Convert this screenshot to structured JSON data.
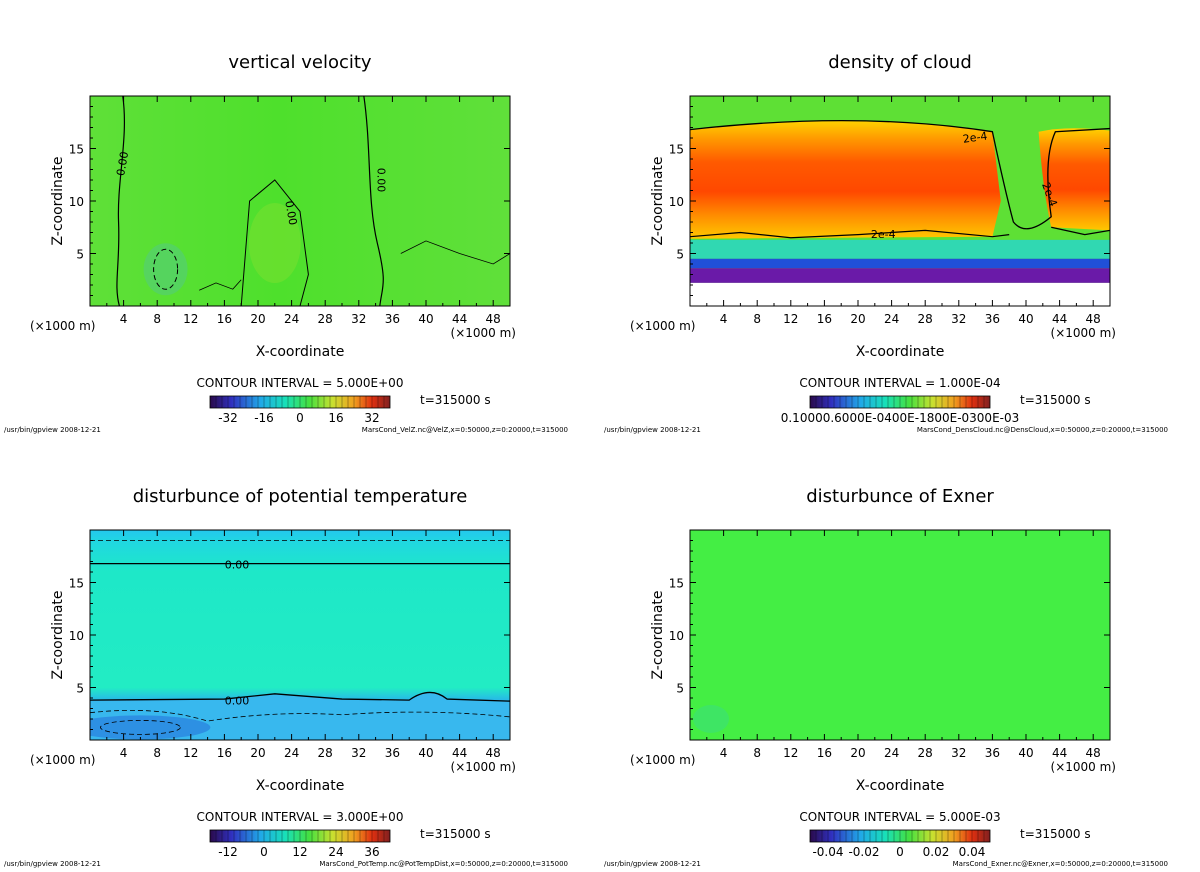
{
  "chart_data": [
    {
      "type": "heatmap",
      "title": "vertical velocity",
      "xlabel": "X-coordinate",
      "ylabel": "Z-coordinate",
      "x_unit_left": "(×1000 m)",
      "x_unit_right": "(×1000 m)",
      "xlim": [
        0,
        50
      ],
      "ylim": [
        0,
        20
      ],
      "xticks": [
        4,
        8,
        12,
        16,
        20,
        24,
        28,
        32,
        36,
        40,
        44,
        48
      ],
      "yticks": [
        5,
        10,
        15
      ],
      "contour_interval": "CONTOUR INTERVAL = 5.000E+00",
      "time_label": "t=315000 s",
      "colorbar_ticks": [
        "-32",
        "-16",
        "0",
        "16",
        "32"
      ],
      "contour_labels": [
        "0.00",
        "0.00",
        "0.00"
      ],
      "footer_left": "/usr/bin/gpview  2008-12-21",
      "footer_right": "MarsCond_VelZ.nc@VelZ,x=0:50000,z=0:20000,t=315000",
      "colors": {
        "field": "#66dd22",
        "accent": "#4fe03a"
      }
    },
    {
      "type": "heatmap",
      "title": "density of cloud",
      "xlabel": "X-coordinate",
      "ylabel": "Z-coordinate",
      "x_unit_left": "(×1000 m)",
      "x_unit_right": "(×1000 m)",
      "xlim": [
        0,
        50
      ],
      "ylim": [
        0,
        20
      ],
      "xticks": [
        4,
        8,
        12,
        16,
        20,
        24,
        28,
        32,
        36,
        40,
        44,
        48
      ],
      "yticks": [
        5,
        10,
        15
      ],
      "contour_interval": "CONTOUR INTERVAL = 1.000E-04",
      "time_label": "t=315000 s",
      "colorbar_ticks": [
        "0.10000.6000E-0400E-1800E-0300E-03"
      ],
      "contour_labels": [
        "2e-4",
        "2e-4",
        "2e-4"
      ],
      "footer_left": "/usr/bin/gpview  2008-12-21",
      "footer_right": "MarsCond_DensCloud.nc@DensCloud,x=0:50000,z=0:20000,t=315000",
      "colors": {
        "core": "#ff4400",
        "edge": "#ffcc00",
        "base": "#6a1aa8"
      }
    },
    {
      "type": "heatmap",
      "title": "disturbunce of potential temperature",
      "xlabel": "X-coordinate",
      "ylabel": "Z-coordinate",
      "x_unit_left": "(×1000 m)",
      "x_unit_right": "(×1000 m)",
      "xlim": [
        0,
        50
      ],
      "ylim": [
        0,
        20
      ],
      "xticks": [
        4,
        8,
        12,
        16,
        20,
        24,
        28,
        32,
        36,
        40,
        44,
        48
      ],
      "yticks": [
        5,
        10,
        15
      ],
      "contour_interval": "CONTOUR INTERVAL = 3.000E+00",
      "time_label": "t=315000 s",
      "colorbar_ticks": [
        "-12",
        "0",
        "12",
        "24",
        "36"
      ],
      "contour_labels": [
        "0.00",
        "0.00"
      ],
      "footer_left": "/usr/bin/gpview  2008-12-21",
      "footer_right": "MarsCond_PotTemp.nc@PotTempDist,x=0:50000,z=0:20000,t=315000",
      "colors": {
        "field": "#1ee8c8",
        "low": "#2b7be0"
      }
    },
    {
      "type": "heatmap",
      "title": "disturbunce of Exner",
      "xlabel": "X-coordinate",
      "ylabel": "Z-coordinate",
      "x_unit_left": "(×1000 m)",
      "x_unit_right": "(×1000 m)",
      "xlim": [
        0,
        50
      ],
      "ylim": [
        0,
        20
      ],
      "xticks": [
        4,
        8,
        12,
        16,
        20,
        24,
        28,
        32,
        36,
        40,
        44,
        48
      ],
      "yticks": [
        5,
        10,
        15
      ],
      "contour_interval": "CONTOUR INTERVAL = 5.000E-03",
      "time_label": "t=315000 s",
      "colorbar_ticks": [
        "-0.04",
        "-0.02",
        "0",
        "0.02",
        "0.04"
      ],
      "contour_labels": [],
      "footer_left": "/usr/bin/gpview  2008-12-21",
      "footer_right": "MarsCond_Exner.nc@Exner,x=0:50000,z=0:20000,t=315000",
      "colors": {
        "field": "#44ee44"
      }
    }
  ]
}
